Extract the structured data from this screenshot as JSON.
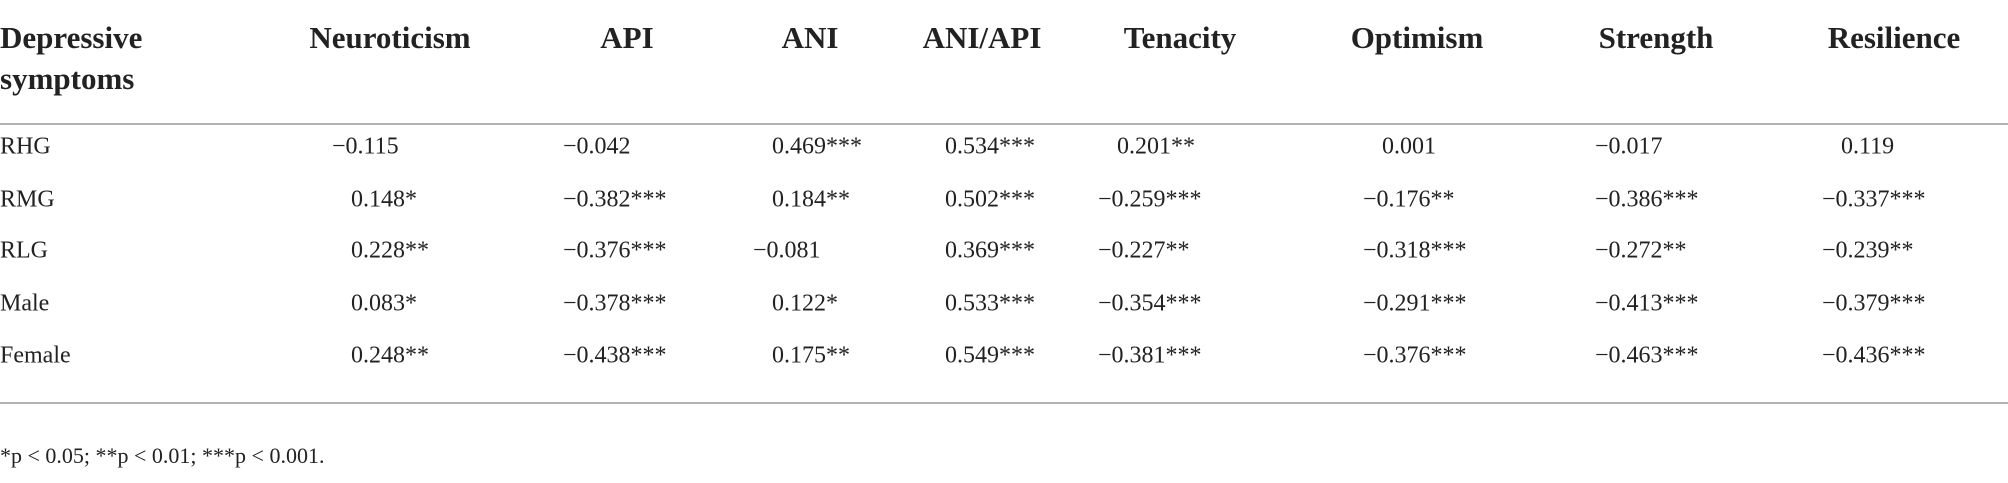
{
  "table": {
    "header": [
      "Depressive symptoms",
      "Neuroticism",
      "API",
      "ANI",
      "ANI/API",
      "Tenacity",
      "Optimism",
      "Strength",
      "Resilience"
    ],
    "rows": [
      [
        "RHG",
        "−0.115",
        "−0.042",
        "0.469***",
        "0.534***",
        "0.201**",
        "0.001",
        "−0.017",
        "0.119"
      ],
      [
        "RMG",
        "0.148*",
        "−0.382***",
        "0.184**",
        "0.502***",
        "−0.259***",
        "−0.176**",
        "−0.386***",
        "−0.337***"
      ],
      [
        "RLG",
        "0.228**",
        "−0.376***",
        "−0.081",
        "0.369***",
        "−0.227**",
        "−0.318***",
        "−0.272**",
        "−0.239**"
      ],
      [
        "Male",
        "0.083*",
        "−0.378***",
        "0.122*",
        "0.533***",
        "−0.354***",
        "−0.291***",
        "−0.413***",
        "−0.379***"
      ],
      [
        "Female",
        "0.248**",
        "−0.438***",
        "0.175**",
        "0.549***",
        "−0.381***",
        "−0.376***",
        "−0.463***",
        "−0.436***"
      ]
    ],
    "footnote": "*p < 0.05; **p < 0.01; ***p < 0.001."
  }
}
